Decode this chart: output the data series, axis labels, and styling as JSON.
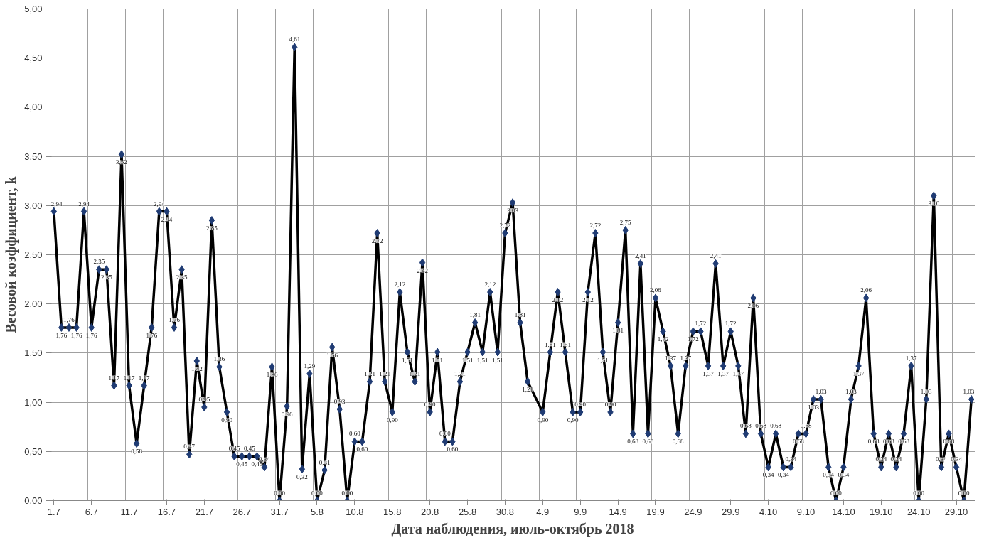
{
  "chart_data": {
    "type": "line",
    "xlabel": "Дата наблюдения, июль-октябрь 2018",
    "ylabel": "Весовой коэффициент, k",
    "categories": [
      "1.7",
      null,
      null,
      null,
      null,
      "6.7",
      null,
      null,
      null,
      null,
      "11.7",
      null,
      null,
      null,
      null,
      "16.7",
      null,
      null,
      null,
      null,
      "21.7",
      null,
      null,
      null,
      null,
      "26.7",
      null,
      null,
      null,
      null,
      "31.7",
      null,
      null,
      null,
      null,
      "5.8",
      null,
      null,
      null,
      null,
      "10.8",
      null,
      null,
      null,
      null,
      "15.8",
      null,
      null,
      null,
      null,
      "20.8",
      null,
      null,
      null,
      null,
      "25.8",
      null,
      null,
      null,
      null,
      "30.8",
      null,
      null,
      null,
      null,
      "4.9",
      null,
      null,
      null,
      null,
      "9.9",
      null,
      null,
      null,
      null,
      "14.9",
      null,
      null,
      null,
      null,
      "19.9",
      null,
      null,
      null,
      null,
      "24.9",
      null,
      null,
      null,
      null,
      "29.9",
      null,
      null,
      null,
      null,
      "4.10",
      null,
      null,
      null,
      null,
      "9.10",
      null,
      null,
      null,
      null,
      "14.10",
      null,
      null,
      null,
      null,
      "19.10",
      null,
      null,
      null,
      null,
      "24.10",
      null,
      null,
      null,
      null,
      "29.10",
      null,
      null
    ],
    "series": [
      {
        "color": "#000000",
        "values": [
          2.94,
          1.76,
          1.76,
          1.76,
          2.94,
          1.76,
          2.35,
          2.35,
          1.17,
          3.52,
          1.17,
          0.58,
          1.17,
          1.76,
          2.94,
          2.94,
          1.76,
          2.35,
          0.47,
          1.42,
          0.95,
          2.85,
          1.36,
          0.9,
          0.45,
          0.45,
          0.45,
          0.45,
          0.34,
          1.36,
          0.0,
          0.96,
          4.61,
          0.32,
          1.29,
          0.0,
          0.31,
          1.56,
          0.93,
          0.0,
          0.6,
          0.6,
          1.21,
          2.72,
          1.21,
          0.9,
          2.12,
          1.51,
          1.21,
          2.42,
          0.9,
          1.51,
          0.6,
          0.6,
          1.21,
          1.51,
          1.81,
          1.51,
          2.12,
          1.51,
          2.72,
          3.03,
          1.81,
          1.21,
          null,
          0.9,
          1.51,
          2.12,
          1.51,
          0.9,
          0.9,
          2.12,
          2.72,
          1.51,
          0.9,
          1.81,
          2.75,
          0.68,
          2.41,
          0.68,
          2.06,
          1.72,
          1.37,
          0.68,
          1.37,
          1.72,
          1.72,
          1.37,
          2.41,
          1.37,
          1.72,
          1.37,
          0.68,
          2.06,
          0.68,
          0.34,
          0.68,
          0.34,
          0.34,
          0.68,
          0.68,
          1.03,
          1.03,
          0.34,
          0.0,
          0.34,
          1.03,
          1.37,
          2.06,
          0.68,
          0.34,
          0.68,
          0.34,
          0.68,
          1.37,
          0.0,
          1.03,
          3.1,
          0.34,
          0.68,
          0.34,
          0.0,
          1.03
        ],
        "value_labels": [
          "2,94",
          "1,76",
          "1,76",
          "1,76",
          "2,94",
          "1,76",
          "2,35",
          "2,35",
          "1,17",
          "3,52",
          "1,17",
          "0,58",
          "1,17",
          "1,76",
          "2,94",
          "2,94",
          "1,76",
          "2,35",
          "0,47",
          "1,42",
          "0,95",
          "2,85",
          "1,36",
          "0,90",
          "0,45",
          "0,45",
          "0,45",
          "0,45",
          "0,34",
          "1,36",
          "0,00",
          "0,96",
          "4,61",
          "0,32",
          "1,29",
          "0,00",
          "0,31",
          "1,56",
          "0,93",
          "0,00",
          "0,60",
          "0,60",
          "1,21",
          "2,72",
          "1,21",
          "0,90",
          "2,12",
          "1,51",
          "1,21",
          "2,42",
          "0,90",
          "1,51",
          "0,60",
          "0,60",
          "1,21",
          "1,51",
          "1,81",
          "1,51",
          "2,12",
          "1,51",
          "2,72",
          "3,03",
          "1,81",
          "1,21",
          null,
          "0,90",
          "1,51",
          "2,12",
          "1,51",
          "0,90",
          "0,90",
          "2,12",
          "2,72",
          "1,51",
          "0,90",
          "1,81",
          "2,75",
          "0,68",
          "2,41",
          "0,68",
          "2,06",
          "1,72",
          "1,37",
          "0,68",
          "1,37",
          "1,72",
          "1,72",
          "1,37",
          "2,41",
          "1,37",
          "1,72",
          "1,37",
          "0,68",
          "2,06",
          "0,68",
          "0,34",
          "0,68",
          "0,34",
          "0,34",
          "0,68",
          "0,68",
          "1,03",
          "1,03",
          "0,34",
          "0,00",
          "0,34",
          "1,03",
          "1,37",
          "2,06",
          "0,68",
          "0,34",
          "0,68",
          "0,34",
          "0,68",
          "1,37",
          "0,00",
          "1,03",
          "3,10",
          "0,34",
          "0,68",
          "0,34",
          "0,00",
          "1,03"
        ]
      }
    ],
    "marker": "diamond",
    "line_style": "solid",
    "grid": true,
    "ylim": [
      0,
      5
    ],
    "yticks": [
      {
        "value": 0,
        "label": "0,00"
      },
      {
        "value": 0.5,
        "label": "0,50"
      },
      {
        "value": 1,
        "label": "1,00"
      },
      {
        "value": 1.5,
        "label": "1,50"
      },
      {
        "value": 2,
        "label": "2,00"
      },
      {
        "value": 2.5,
        "label": "2,50"
      },
      {
        "value": 3,
        "label": "3,00"
      },
      {
        "value": 3.5,
        "label": "3,50"
      },
      {
        "value": 4,
        "label": "4,00"
      },
      {
        "value": 4.5,
        "label": "4,50"
      },
      {
        "value": 5,
        "label": "5,00"
      }
    ]
  }
}
